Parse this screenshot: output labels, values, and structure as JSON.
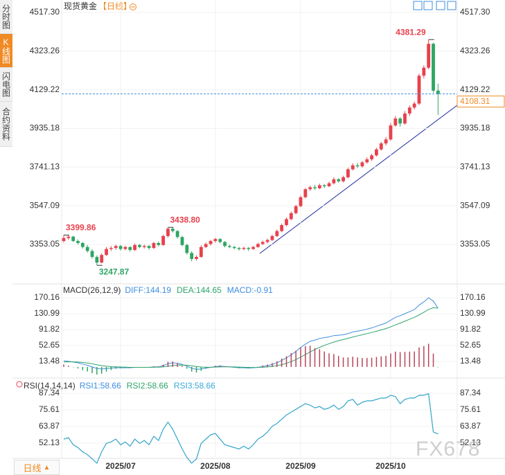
{
  "sidebar": {
    "tabs": [
      "分时图",
      "K线图",
      "闪电图",
      "合约资料"
    ],
    "period_button": "日线"
  },
  "watermark": "FX678",
  "chart_data": [
    {
      "type": "candlestick",
      "title": "现货黄金",
      "period": "【日线】",
      "categories": [
        null,
        null,
        null,
        null,
        null,
        null,
        null,
        null,
        null,
        null,
        null,
        null,
        "2025/07",
        null,
        null,
        null,
        null,
        null,
        null,
        null,
        null,
        null,
        null,
        null,
        null,
        null,
        null,
        null,
        null,
        null,
        null,
        null,
        "2025/08",
        null,
        null,
        null,
        null,
        null,
        null,
        null,
        null,
        null,
        null,
        null,
        null,
        null,
        null,
        null,
        null,
        null,
        "2025/09",
        null,
        null,
        null,
        null,
        null,
        null,
        null,
        null,
        null,
        null,
        null,
        null,
        null,
        null,
        null,
        null,
        null,
        null,
        "2025/10",
        null,
        null,
        null,
        null,
        null,
        null,
        null,
        null,
        null,
        null
      ],
      "candles": [
        [
          3370,
          3399.86,
          3362,
          3385
        ],
        [
          3385,
          3398,
          3376,
          3392
        ],
        [
          3392,
          3396,
          3365,
          3370
        ],
        [
          3370,
          3378,
          3352,
          3360
        ],
        [
          3360,
          3366,
          3332,
          3340
        ],
        [
          3340,
          3350,
          3312,
          3320
        ],
        [
          3320,
          3328,
          3282,
          3290
        ],
        [
          3290,
          3298,
          3247.87,
          3262
        ],
        [
          3262,
          3308,
          3258,
          3300
        ],
        [
          3300,
          3340,
          3295,
          3330
        ],
        [
          3330,
          3345,
          3320,
          3335
        ],
        [
          3335,
          3352,
          3326,
          3345
        ],
        [
          3345,
          3350,
          3322,
          3330
        ],
        [
          3330,
          3346,
          3324,
          3340
        ],
        [
          3340,
          3344,
          3316,
          3325
        ],
        [
          3325,
          3358,
          3320,
          3350
        ],
        [
          3350,
          3356,
          3334,
          3340
        ],
        [
          3340,
          3352,
          3332,
          3345
        ],
        [
          3345,
          3350,
          3326,
          3335
        ],
        [
          3335,
          3366,
          3330,
          3360
        ],
        [
          3360,
          3368,
          3342,
          3350
        ],
        [
          3350,
          3402,
          3346,
          3395
        ],
        [
          3395,
          3438.8,
          3388,
          3432
        ],
        [
          3432,
          3436,
          3412,
          3420
        ],
        [
          3420,
          3425,
          3382,
          3390
        ],
        [
          3390,
          3396,
          3344,
          3350
        ],
        [
          3350,
          3356,
          3302,
          3310
        ],
        [
          3310,
          3318,
          3268,
          3280
        ],
        [
          3280,
          3298,
          3272,
          3290
        ],
        [
          3290,
          3348,
          3286,
          3340
        ],
        [
          3340,
          3362,
          3334,
          3355
        ],
        [
          3355,
          3376,
          3348,
          3370
        ],
        [
          3370,
          3386,
          3362,
          3380
        ],
        [
          3380,
          3384,
          3358,
          3365
        ],
        [
          3365,
          3370,
          3338,
          3345
        ],
        [
          3345,
          3352,
          3334,
          3340
        ],
        [
          3340,
          3346,
          3328,
          3335
        ],
        [
          3335,
          3340,
          3322,
          3330
        ],
        [
          3330,
          3342,
          3324,
          3335
        ],
        [
          3335,
          3340,
          3320,
          3330
        ],
        [
          3330,
          3346,
          3326,
          3340
        ],
        [
          3340,
          3362,
          3336,
          3355
        ],
        [
          3355,
          3372,
          3350,
          3365
        ],
        [
          3365,
          3382,
          3358,
          3375
        ],
        [
          3375,
          3402,
          3370,
          3395
        ],
        [
          3395,
          3428,
          3390,
          3420
        ],
        [
          3420,
          3458,
          3414,
          3450
        ],
        [
          3450,
          3488,
          3444,
          3480
        ],
        [
          3480,
          3518,
          3474,
          3510
        ],
        [
          3510,
          3552,
          3504,
          3545
        ],
        [
          3545,
          3598,
          3540,
          3590
        ],
        [
          3590,
          3636,
          3584,
          3630
        ],
        [
          3630,
          3648,
          3622,
          3640
        ],
        [
          3640,
          3652,
          3626,
          3635
        ],
        [
          3635,
          3658,
          3630,
          3650
        ],
        [
          3650,
          3656,
          3636,
          3645
        ],
        [
          3645,
          3668,
          3640,
          3660
        ],
        [
          3660,
          3690,
          3654,
          3680
        ],
        [
          3680,
          3686,
          3662,
          3670
        ],
        [
          3670,
          3698,
          3664,
          3690
        ],
        [
          3690,
          3738,
          3684,
          3730
        ],
        [
          3730,
          3760,
          3724,
          3750
        ],
        [
          3750,
          3762,
          3736,
          3745
        ],
        [
          3745,
          3772,
          3738,
          3765
        ],
        [
          3765,
          3790,
          3758,
          3780
        ],
        [
          3780,
          3808,
          3772,
          3800
        ],
        [
          3800,
          3838,
          3794,
          3830
        ],
        [
          3830,
          3868,
          3824,
          3860
        ],
        [
          3860,
          3892,
          3850,
          3880
        ],
        [
          3880,
          3962,
          3874,
          3950
        ],
        [
          3950,
          3998,
          3944,
          3985
        ],
        [
          3985,
          3992,
          3944,
          3960
        ],
        [
          3960,
          4022,
          3954,
          4010
        ],
        [
          4010,
          4050,
          3998,
          4040
        ],
        [
          4040,
          4070,
          4030,
          4060
        ],
        [
          4060,
          4210,
          4052,
          4200
        ],
        [
          4200,
          4252,
          4186,
          4240
        ],
        [
          4240,
          4381.29,
          4232,
          4360
        ],
        [
          4360,
          4365,
          4115,
          4125
        ],
        [
          4125,
          4160,
          4004,
          4108.31
        ]
      ],
      "up_color": "#e8414d",
      "down_color": "#2fa563",
      "last_color": "#f08a24",
      "ylim": [
        3154.8,
        4545.1
      ],
      "yticks": [
        {
          "value": 4517.3,
          "label": "4517.30"
        },
        4323.26,
        4129.22,
        3935.18,
        3741.13,
        3547.09,
        3353.05
      ],
      "annotations": [
        {
          "label": "3399.86",
          "value": 3399.86
        },
        {
          "label": "3247.87",
          "value": 3247.87
        },
        {
          "label": "3438.80",
          "value": 3438.8
        },
        {
          "label": "4381.29",
          "value": 4381.29
        }
      ]
    },
    {
      "type": "macd",
      "title": "MACD(26,12,9)",
      "series": [
        {
          "name": "DIFF:144.19",
          "color": "#3d8de0",
          "values": [
            15,
            14,
            12,
            10,
            7,
            4,
            0,
            -4,
            -5,
            -4,
            -3,
            -2,
            -2,
            -2,
            -2,
            -1,
            -1,
            -1,
            -1,
            0,
            0,
            3,
            8,
            10,
            9,
            6,
            2,
            -3,
            -6,
            -5,
            -3,
            -1,
            1,
            2,
            1,
            0,
            -1,
            -2,
            -2,
            -3,
            -2,
            -1,
            1,
            3,
            6,
            10,
            16,
            22,
            30,
            38,
            48,
            56,
            63,
            66,
            70,
            72,
            74,
            77,
            78,
            79,
            82,
            86,
            88,
            90,
            93,
            96,
            100,
            104,
            108,
            115,
            122,
            126,
            131,
            136,
            141,
            152,
            160,
            170,
            162,
            144.19
          ]
        },
        {
          "name": "DEA:144.65",
          "color": "#2ea46a",
          "values": [
            12,
            12.5,
            12.4,
            12,
            11,
            9.6,
            7.7,
            5.4,
            3.3,
            1.8,
            0.8,
            0.2,
            -0.2,
            -0.6,
            -0.9,
            -0.9,
            -0.9,
            -0.9,
            -0.9,
            -0.7,
            -0.6,
            0.1,
            1.7,
            3.4,
            4.5,
            4.8,
            4.2,
            2.8,
            1,
            -0.2,
            -0.8,
            -0.8,
            -0.4,
            0.1,
            0.3,
            0.2,
            0,
            -0.4,
            -0.7,
            -1.2,
            -1.4,
            -1.3,
            -0.8,
            0,
            1.2,
            3,
            5.6,
            8.9,
            13.1,
            18.1,
            24,
            30.4,
            37,
            42.8,
            48.2,
            53,
            57.2,
            61.2,
            64.5,
            67.4,
            70.3,
            73.5,
            76.4,
            79.1,
            81.9,
            84.7,
            87.8,
            91,
            94.4,
            98.5,
            103.2,
            107.8,
            112.5,
            117.2,
            122,
            128,
            134.4,
            141.5,
            145.6,
            144.65
          ]
        },
        {
          "name": "MACD:-0.91",
          "color": "#3d8de0",
          "up_color": "#b8435a",
          "down_color": "#2fa563",
          "values": [
            6,
            3,
            -0.8,
            -4,
            -8,
            -11.2,
            -15.4,
            -18.8,
            -16.6,
            -11.6,
            -7.6,
            -4.4,
            -3.6,
            -2.8,
            -2.2,
            -0.2,
            -0.2,
            -0.2,
            -0.2,
            1.4,
            1.2,
            5.8,
            12.6,
            13.2,
            9,
            2.4,
            -4.4,
            -11.6,
            -14,
            -9.6,
            -4.4,
            -0.4,
            2.8,
            3.8,
            1.4,
            -0.4,
            -2,
            -3.2,
            -2.6,
            -3.6,
            -1.2,
            0.6,
            3.6,
            6,
            9.6,
            14,
            20.8,
            26.2,
            33.8,
            39.8,
            48,
            51.2,
            52,
            46.4,
            43.6,
            38,
            33.6,
            31.6,
            27,
            23.2,
            23.4,
            25,
            23.2,
            21.8,
            22.2,
            22.6,
            24.4,
            26,
            27.2,
            33,
            37.6,
            36.4,
            37,
            37.6,
            38,
            48,
            51.2,
            57,
            32.8,
            -0.91
          ]
        }
      ],
      "ylim": [
        -25.7,
        190.6
      ],
      "yticks": [
        170.16,
        130.99,
        91.82,
        52.65,
        13.48
      ]
    },
    {
      "type": "line",
      "title": "RSI(14,14,14)",
      "series": [
        {
          "name": "RSI1:58.66",
          "color": "#3d8de0",
          "values": [
            55,
            56,
            51,
            49,
            46,
            44,
            41,
            38,
            46,
            52,
            53,
            55,
            51,
            53,
            50,
            55,
            52,
            54,
            51,
            57,
            54,
            62,
            67,
            62,
            55,
            48,
            42,
            38,
            41,
            52,
            55,
            58,
            59,
            55,
            51,
            50,
            49,
            48,
            50,
            48,
            51,
            55,
            57,
            60,
            64,
            66,
            69,
            72,
            74,
            76,
            78,
            80,
            79,
            77,
            78,
            76,
            77,
            79,
            76,
            78,
            82,
            83,
            79,
            81,
            82,
            82,
            83,
            84,
            84,
            86,
            85,
            80,
            83,
            84,
            84,
            86,
            86,
            87,
            60,
            58.66
          ]
        },
        {
          "name": "RSI2:58.66",
          "color": "#2ea46a",
          "values": [
            55,
            56,
            51,
            49,
            46,
            44,
            41,
            38,
            46,
            52,
            53,
            55,
            51,
            53,
            50,
            55,
            52,
            54,
            51,
            57,
            54,
            62,
            67,
            62,
            55,
            48,
            42,
            38,
            41,
            52,
            55,
            58,
            59,
            55,
            51,
            50,
            49,
            48,
            50,
            48,
            51,
            55,
            57,
            60,
            64,
            66,
            69,
            72,
            74,
            76,
            78,
            80,
            79,
            77,
            78,
            76,
            77,
            79,
            76,
            78,
            82,
            83,
            79,
            81,
            82,
            82,
            83,
            84,
            84,
            86,
            85,
            80,
            83,
            84,
            84,
            86,
            86,
            87,
            60,
            58.66
          ]
        },
        {
          "name": "RSI3:58.66",
          "color": "#39a9d8",
          "values": [
            55,
            56,
            51,
            49,
            46,
            44,
            41,
            38,
            46,
            52,
            53,
            55,
            51,
            53,
            50,
            55,
            52,
            54,
            51,
            57,
            54,
            62,
            67,
            62,
            55,
            48,
            42,
            38,
            41,
            52,
            55,
            58,
            59,
            55,
            51,
            50,
            49,
            48,
            50,
            48,
            51,
            55,
            57,
            60,
            64,
            66,
            69,
            72,
            74,
            76,
            78,
            80,
            79,
            77,
            78,
            76,
            77,
            79,
            76,
            78,
            82,
            83,
            79,
            81,
            82,
            82,
            83,
            84,
            84,
            86,
            85,
            80,
            83,
            84,
            84,
            86,
            86,
            87,
            60,
            58.66
          ]
        }
      ],
      "ylim": [
        42.35,
        91.25
      ],
      "yticks": [
        87.34,
        75.61,
        63.87,
        52.13
      ]
    }
  ]
}
